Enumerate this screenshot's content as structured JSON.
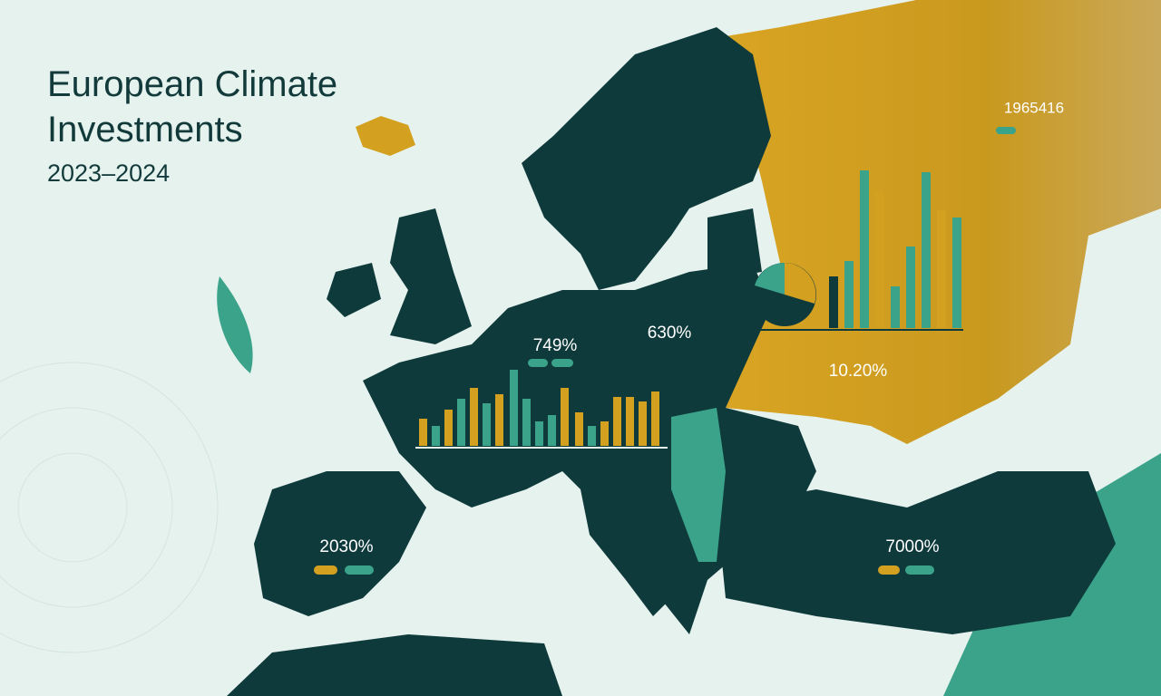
{
  "header": {
    "title": "European Climate Investments",
    "subtitle": "2023–2024"
  },
  "labels": [
    "749%",
    "630%",
    "10.20%",
    "2030%",
    "7000%",
    "1965416"
  ]
}
